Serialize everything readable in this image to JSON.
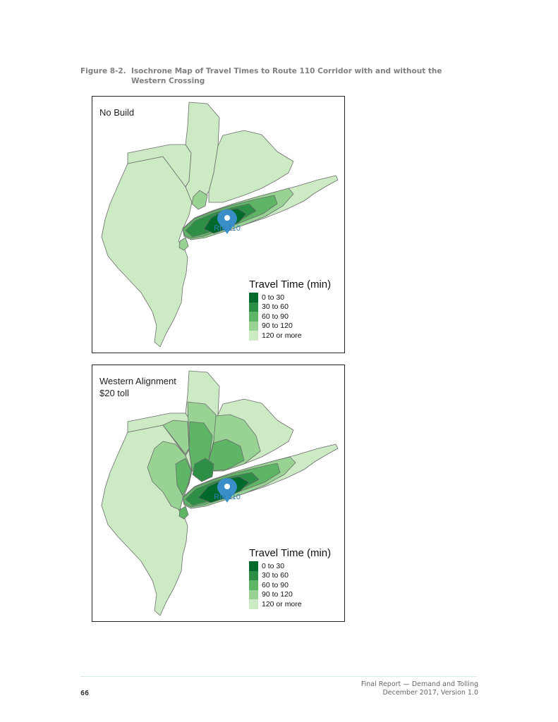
{
  "figure": {
    "number": "Figure 8-2.",
    "title": "Isochrone Map of Travel Times to Route 110 Corridor with and without the Western Crossing"
  },
  "panels": [
    {
      "label_lines": [
        "No Build"
      ],
      "marker_label": "Rte 110",
      "legend": {
        "title": "Travel Time (min)",
        "items": [
          {
            "label": "0 to 30",
            "color": "#00692c"
          },
          {
            "label": "30 to 60",
            "color": "#2d8f45"
          },
          {
            "label": "60 to 90",
            "color": "#5db565"
          },
          {
            "label": "90 to 120",
            "color": "#98d394"
          },
          {
            "label": "120 or more",
            "color": "#ccebc5"
          }
        ]
      }
    },
    {
      "label_lines": [
        "Western Alignment",
        "$20 toll"
      ],
      "marker_label": "Rte 110",
      "legend": {
        "title": "Travel Time (min)",
        "items": [
          {
            "label": "0 to 30",
            "color": "#00692c"
          },
          {
            "label": "30 to 60",
            "color": "#2d8f45"
          },
          {
            "label": "60 to 90",
            "color": "#5db565"
          },
          {
            "label": "90 to 120",
            "color": "#98d394"
          },
          {
            "label": "120 or more",
            "color": "#ccebc5"
          }
        ]
      }
    }
  ],
  "colors": {
    "c0_30": "#00692c",
    "c30_60": "#2d8f45",
    "c60_90": "#5db565",
    "c90_120": "#98d394",
    "c120": "#ccebc5",
    "marker": "#3a8fc9",
    "outline": "#555555"
  },
  "marker_icon": "map-pin-icon",
  "footer": {
    "page_number": "66",
    "report_title": "Final Report — Demand and Tolling",
    "report_date": "December 2017, Version 1.0"
  }
}
